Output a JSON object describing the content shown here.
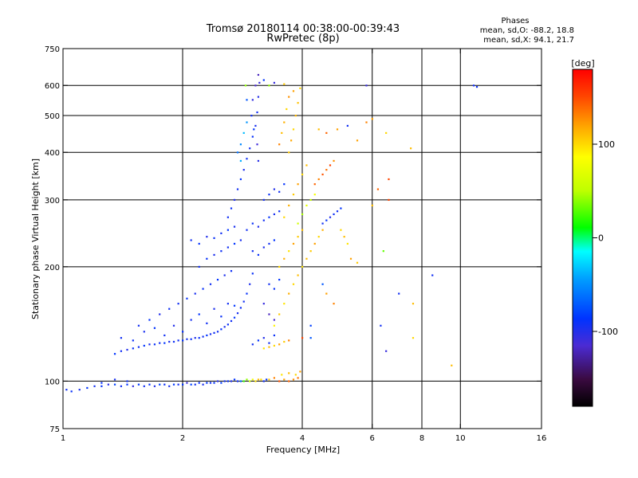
{
  "header": {
    "title_line1": "Tromsø 20180114 00:38:00-00:39:43",
    "title_line2": "RwPretec (8p)"
  },
  "stats": {
    "label": "Phases",
    "o_mode": "mean, sd,O: -88.2, 18.8",
    "x_mode": "mean, sd,X:  94.1, 21.7"
  },
  "colorbar": {
    "label": "[deg]",
    "ticks": [
      {
        "value": 100,
        "label": "100"
      },
      {
        "value": 0,
        "label": "0"
      },
      {
        "value": -100,
        "label": "-100"
      }
    ],
    "range": [
      -180,
      180
    ]
  },
  "chart_data": {
    "type": "scatter",
    "xlabel": "Frequency [MHz]",
    "ylabel": "Stationary phase Virtual Height [km]",
    "xscale": "log",
    "yscale": "log",
    "xlim": [
      1,
      16
    ],
    "ylim": [
      75,
      750
    ],
    "xticks": [
      {
        "value": 1,
        "label": "1"
      },
      {
        "value": 2,
        "label": "2"
      },
      {
        "value": 4,
        "label": "4"
      },
      {
        "value": 6,
        "label": "6"
      },
      {
        "value": 8,
        "label": "8"
      },
      {
        "value": 10,
        "label": "10"
      },
      {
        "value": 16,
        "label": "16"
      }
    ],
    "yticks": [
      {
        "value": 75,
        "label": "75"
      },
      {
        "value": 100,
        "label": "100"
      },
      {
        "value": 200,
        "label": "200"
      },
      {
        "value": 300,
        "label": "300"
      },
      {
        "value": 400,
        "label": "400"
      },
      {
        "value": 500,
        "label": "500"
      },
      {
        "value": 600,
        "label": "600"
      },
      {
        "value": 750,
        "label": "750"
      }
    ],
    "xgrid": [
      2,
      4,
      6,
      8,
      10
    ],
    "ygrid": [
      100,
      200,
      300,
      400,
      500,
      600
    ],
    "color_by": "phase (deg)",
    "points": [
      [
        1.02,
        95,
        -100
      ],
      [
        1.05,
        94,
        -98
      ],
      [
        1.1,
        95,
        -102
      ],
      [
        1.15,
        96,
        -95
      ],
      [
        1.2,
        97,
        -100
      ],
      [
        1.25,
        97,
        -96
      ],
      [
        1.3,
        98,
        -105
      ],
      [
        1.35,
        98,
        -90
      ],
      [
        1.4,
        97,
        -100
      ],
      [
        1.45,
        98,
        -95
      ],
      [
        1.5,
        97,
        -108
      ],
      [
        1.55,
        98,
        -92
      ],
      [
        1.6,
        97,
        -100
      ],
      [
        1.65,
        98,
        -96
      ],
      [
        1.7,
        97,
        -104
      ],
      [
        1.75,
        98,
        -88
      ],
      [
        1.8,
        98,
        -98
      ],
      [
        1.85,
        97,
        -102
      ],
      [
        1.9,
        98,
        -93
      ],
      [
        1.95,
        98,
        -100
      ],
      [
        2.0,
        98,
        -95
      ],
      [
        2.05,
        99,
        -110
      ],
      [
        2.1,
        98,
        -90
      ],
      [
        2.15,
        98,
        -100
      ],
      [
        2.2,
        99,
        -97
      ],
      [
        2.25,
        98,
        -102
      ],
      [
        2.3,
        99,
        -94
      ],
      [
        2.35,
        99,
        -100
      ],
      [
        2.4,
        99,
        -96
      ],
      [
        2.45,
        100,
        -105
      ],
      [
        2.5,
        99,
        -92
      ],
      [
        2.55,
        100,
        -100
      ],
      [
        2.6,
        100,
        -98
      ],
      [
        2.65,
        100,
        -103
      ],
      [
        2.7,
        101,
        -95
      ],
      [
        2.75,
        100,
        -100
      ],
      [
        2.8,
        100,
        -70
      ],
      [
        2.85,
        100,
        20
      ],
      [
        2.9,
        101,
        40
      ],
      [
        2.95,
        100,
        60
      ],
      [
        3.0,
        101,
        80
      ],
      [
        3.05,
        100,
        95
      ],
      [
        3.1,
        101,
        110
      ],
      [
        3.15,
        101,
        100
      ],
      [
        3.2,
        100,
        -100
      ],
      [
        3.25,
        101,
        -95
      ],
      [
        3.3,
        101,
        105
      ],
      [
        3.4,
        102,
        130
      ],
      [
        3.5,
        100,
        145
      ],
      [
        3.6,
        101,
        120
      ],
      [
        3.7,
        100,
        140
      ],
      [
        3.8,
        101,
        125
      ],
      [
        3.9,
        102,
        135
      ],
      [
        3.55,
        104,
        95
      ],
      [
        3.7,
        105,
        110
      ],
      [
        3.85,
        104,
        100
      ],
      [
        3.95,
        106,
        120
      ],
      [
        1.35,
        101,
        -102
      ],
      [
        1.25,
        99,
        -97
      ],
      [
        1.45,
        100,
        -100
      ],
      [
        1.35,
        118,
        -95
      ],
      [
        1.4,
        120,
        -100
      ],
      [
        1.45,
        121,
        -104
      ],
      [
        1.5,
        122,
        -97
      ],
      [
        1.55,
        123,
        -100
      ],
      [
        1.6,
        124,
        -95
      ],
      [
        1.65,
        125,
        -102
      ],
      [
        1.7,
        125,
        -98
      ],
      [
        1.75,
        126,
        -100
      ],
      [
        1.8,
        126,
        -94
      ],
      [
        1.85,
        127,
        -103
      ],
      [
        1.9,
        127,
        -99
      ],
      [
        1.95,
        128,
        -100
      ],
      [
        2.0,
        128,
        -96
      ],
      [
        2.05,
        129,
        -101
      ],
      [
        2.1,
        129,
        -98
      ],
      [
        2.15,
        130,
        -104
      ],
      [
        2.2,
        130,
        -97
      ],
      [
        2.25,
        131,
        -100
      ],
      [
        2.3,
        132,
        -95
      ],
      [
        2.35,
        133,
        -102
      ],
      [
        2.4,
        134,
        -99
      ],
      [
        2.45,
        135,
        -100
      ],
      [
        2.5,
        137,
        -96
      ],
      [
        2.55,
        139,
        -103
      ],
      [
        2.6,
        141,
        -98
      ],
      [
        2.65,
        144,
        -100
      ],
      [
        2.7,
        147,
        -95
      ],
      [
        2.75,
        151,
        -102
      ],
      [
        2.8,
        156,
        -99
      ],
      [
        2.85,
        162,
        -100
      ],
      [
        2.9,
        170,
        -97
      ],
      [
        2.95,
        180,
        -103
      ],
      [
        3.0,
        192,
        -98
      ],
      [
        1.4,
        130,
        -100
      ],
      [
        1.5,
        128,
        -98
      ],
      [
        1.6,
        135,
        -102
      ],
      [
        1.7,
        138,
        -96
      ],
      [
        1.8,
        132,
        -100
      ],
      [
        1.9,
        140,
        -104
      ],
      [
        2.0,
        135,
        -97
      ],
      [
        2.1,
        145,
        -101
      ],
      [
        2.2,
        150,
        -95
      ],
      [
        2.3,
        142,
        -100
      ],
      [
        2.4,
        155,
        -103
      ],
      [
        2.5,
        148,
        -98
      ],
      [
        2.6,
        160,
        -100
      ],
      [
        2.7,
        158,
        -94
      ],
      [
        1.55,
        140,
        -100
      ],
      [
        1.65,
        145,
        -96
      ],
      [
        1.75,
        150,
        -104
      ],
      [
        1.85,
        155,
        -99
      ],
      [
        1.95,
        160,
        -100
      ],
      [
        2.05,
        165,
        -97
      ],
      [
        2.15,
        170,
        -102
      ],
      [
        2.25,
        175,
        -98
      ],
      [
        2.35,
        180,
        -100
      ],
      [
        2.45,
        185,
        -95
      ],
      [
        2.55,
        190,
        -103
      ],
      [
        2.65,
        195,
        -99
      ],
      [
        2.1,
        235,
        -100
      ],
      [
        2.2,
        230,
        -96
      ],
      [
        2.3,
        240,
        -104
      ],
      [
        2.4,
        238,
        -98
      ],
      [
        2.5,
        245,
        -100
      ],
      [
        2.6,
        250,
        -95
      ],
      [
        2.7,
        255,
        -102
      ],
      [
        2.2,
        200,
        -100
      ],
      [
        2.3,
        210,
        -97
      ],
      [
        2.4,
        215,
        -103
      ],
      [
        2.5,
        220,
        -99
      ],
      [
        2.6,
        225,
        -100
      ],
      [
        2.7,
        230,
        -95
      ],
      [
        2.8,
        235,
        -102
      ],
      [
        2.6,
        270,
        -100
      ],
      [
        2.65,
        285,
        -98
      ],
      [
        2.7,
        300,
        -104
      ],
      [
        2.75,
        320,
        -100
      ],
      [
        2.8,
        340,
        -96
      ],
      [
        2.85,
        360,
        -103
      ],
      [
        2.9,
        385,
        -99
      ],
      [
        2.95,
        410,
        -100
      ],
      [
        3.0,
        440,
        -97
      ],
      [
        3.05,
        470,
        -102
      ],
      [
        3.08,
        510,
        -100
      ],
      [
        3.1,
        560,
        -105
      ],
      [
        3.12,
        610,
        -110
      ],
      [
        3.1,
        640,
        -120
      ],
      [
        3.05,
        600,
        -115
      ],
      [
        3.0,
        550,
        -108
      ],
      [
        2.98,
        500,
        -100
      ],
      [
        3.02,
        460,
        -95
      ],
      [
        3.08,
        420,
        -112
      ],
      [
        3.1,
        380,
        -106
      ],
      [
        2.8,
        420,
        -60
      ],
      [
        2.85,
        450,
        -40
      ],
      [
        2.9,
        480,
        -55
      ],
      [
        2.75,
        400,
        -70
      ],
      [
        2.8,
        380,
        -45
      ],
      [
        2.9,
        550,
        -80
      ],
      [
        2.88,
        600,
        40
      ],
      [
        2.9,
        250,
        -100
      ],
      [
        3.0,
        260,
        -98
      ],
      [
        3.1,
        255,
        -104
      ],
      [
        3.2,
        265,
        -100
      ],
      [
        3.3,
        270,
        -96
      ],
      [
        3.4,
        275,
        -102
      ],
      [
        3.5,
        280,
        -99
      ],
      [
        3.0,
        220,
        -100
      ],
      [
        3.1,
        215,
        -97
      ],
      [
        3.2,
        225,
        -103
      ],
      [
        3.3,
        230,
        -100
      ],
      [
        3.4,
        235,
        -95
      ],
      [
        3.2,
        300,
        -100
      ],
      [
        3.3,
        310,
        -98
      ],
      [
        3.4,
        320,
        -104
      ],
      [
        3.5,
        315,
        -100
      ],
      [
        3.6,
        330,
        -96
      ],
      [
        3.3,
        180,
        -100
      ],
      [
        3.4,
        175,
        -98
      ],
      [
        3.5,
        185,
        -95
      ],
      [
        3.2,
        160,
        -110
      ],
      [
        3.3,
        150,
        -120
      ],
      [
        3.4,
        145,
        -115
      ],
      [
        3.0,
        125,
        -100
      ],
      [
        3.1,
        128,
        -96
      ],
      [
        3.2,
        130,
        -104
      ],
      [
        3.3,
        126,
        -100
      ],
      [
        3.4,
        132,
        -98
      ],
      [
        3.2,
        122,
        95
      ],
      [
        3.3,
        123,
        110
      ],
      [
        3.4,
        124,
        100
      ],
      [
        3.5,
        125,
        120
      ],
      [
        3.6,
        127,
        105
      ],
      [
        3.7,
        128,
        130
      ],
      [
        3.4,
        140,
        90
      ],
      [
        3.5,
        150,
        105
      ],
      [
        3.6,
        160,
        95
      ],
      [
        3.7,
        170,
        115
      ],
      [
        3.8,
        180,
        100
      ],
      [
        3.9,
        190,
        110
      ],
      [
        3.5,
        200,
        100
      ],
      [
        3.6,
        210,
        115
      ],
      [
        3.7,
        220,
        95
      ],
      [
        3.8,
        230,
        120
      ],
      [
        3.9,
        240,
        105
      ],
      [
        4.0,
        250,
        110
      ],
      [
        3.6,
        270,
        100
      ],
      [
        3.7,
        290,
        115
      ],
      [
        3.8,
        310,
        105
      ],
      [
        3.9,
        330,
        120
      ],
      [
        4.0,
        350,
        100
      ],
      [
        4.1,
        370,
        110
      ],
      [
        3.7,
        400,
        105
      ],
      [
        3.75,
        430,
        118
      ],
      [
        3.8,
        460,
        100
      ],
      [
        3.85,
        500,
        112
      ],
      [
        3.9,
        540,
        108
      ],
      [
        3.8,
        580,
        120
      ],
      [
        3.6,
        480,
        115
      ],
      [
        3.65,
        520,
        100
      ],
      [
        3.7,
        560,
        125
      ],
      [
        3.55,
        450,
        110
      ],
      [
        3.5,
        420,
        130
      ],
      [
        3.9,
        260,
        60
      ],
      [
        4.0,
        275,
        45
      ],
      [
        4.1,
        290,
        70
      ],
      [
        4.2,
        300,
        55
      ],
      [
        4.3,
        310,
        80
      ],
      [
        4.0,
        200,
        95
      ],
      [
        4.1,
        210,
        110
      ],
      [
        4.2,
        220,
        105
      ],
      [
        4.3,
        230,
        120
      ],
      [
        4.4,
        240,
        100
      ],
      [
        4.5,
        250,
        115
      ],
      [
        4.3,
        330,
        140
      ],
      [
        4.4,
        340,
        130
      ],
      [
        4.5,
        350,
        145
      ],
      [
        4.6,
        360,
        135
      ],
      [
        4.7,
        370,
        150
      ],
      [
        4.8,
        380,
        125
      ],
      [
        4.5,
        260,
        -100
      ],
      [
        4.6,
        265,
        -96
      ],
      [
        4.7,
        270,
        -104
      ],
      [
        4.8,
        275,
        -99
      ],
      [
        4.9,
        280,
        -100
      ],
      [
        5.0,
        285,
        -95
      ],
      [
        5.0,
        250,
        100
      ],
      [
        5.1,
        240,
        110
      ],
      [
        5.2,
        230,
        95
      ],
      [
        5.3,
        210,
        120
      ],
      [
        5.5,
        205,
        105
      ],
      [
        4.5,
        180,
        -80
      ],
      [
        4.6,
        170,
        120
      ],
      [
        4.8,
        160,
        130
      ],
      [
        4.0,
        130,
        150
      ],
      [
        4.2,
        140,
        -90
      ],
      [
        5.2,
        470,
        -100
      ],
      [
        5.5,
        430,
        120
      ],
      [
        6.2,
        320,
        140
      ],
      [
        6.5,
        450,
        100
      ],
      [
        6.3,
        140,
        -100
      ],
      [
        6.6,
        300,
        150
      ],
      [
        6.0,
        290,
        110
      ],
      [
        6.4,
        220,
        30
      ],
      [
        7.5,
        410,
        110
      ],
      [
        7.0,
        170,
        -100
      ],
      [
        7.6,
        160,
        110
      ],
      [
        7.6,
        130,
        100
      ],
      [
        8.5,
        190,
        -100
      ],
      [
        9.5,
        110,
        110
      ],
      [
        6.5,
        120,
        -110
      ],
      [
        6.0,
        490,
        120
      ],
      [
        5.8,
        480,
        130
      ],
      [
        4.2,
        130,
        -80
      ],
      [
        10.8,
        600,
        -100
      ],
      [
        11.0,
        595,
        -98
      ],
      [
        5.8,
        600,
        -110
      ],
      [
        3.95,
        590,
        100
      ],
      [
        4.9,
        460,
        120
      ],
      [
        6.6,
        340,
        150
      ],
      [
        4.4,
        460,
        110
      ],
      [
        4.6,
        450,
        140
      ],
      [
        3.3,
        600,
        40
      ],
      [
        3.2,
        620,
        -95
      ],
      [
        3.4,
        610,
        -110
      ],
      [
        3.6,
        605,
        105
      ]
    ]
  }
}
